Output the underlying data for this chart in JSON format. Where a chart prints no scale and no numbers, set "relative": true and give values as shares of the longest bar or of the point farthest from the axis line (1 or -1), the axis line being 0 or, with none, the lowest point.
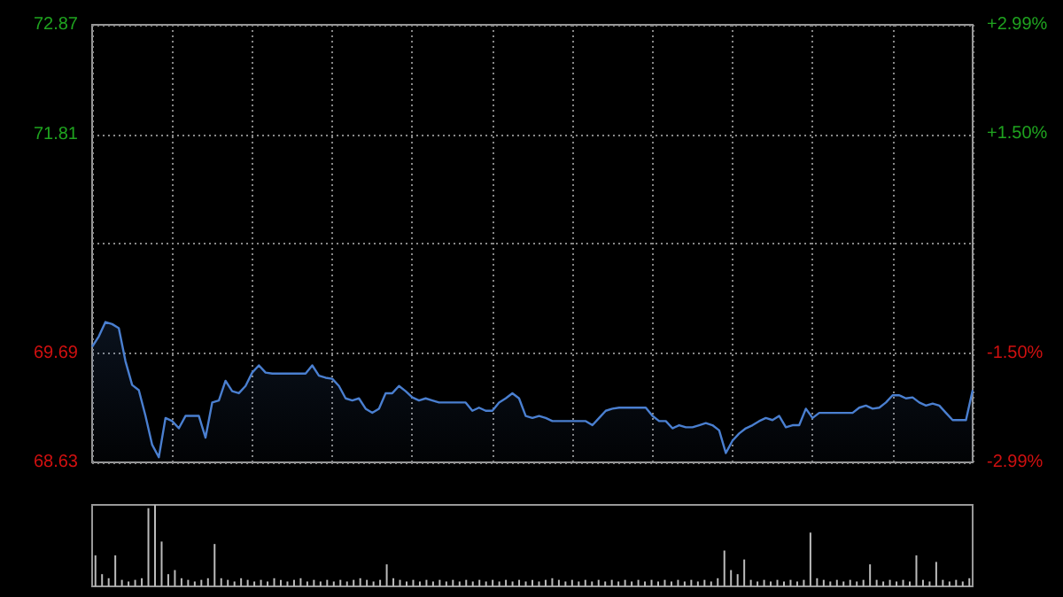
{
  "chart_data": [
    {
      "type": "area",
      "categories": [
        null,
        null,
        null,
        null,
        null,
        null,
        null,
        null,
        null,
        null,
        null,
        null,
        null,
        null,
        null,
        null,
        null,
        null,
        null,
        null,
        null,
        null,
        null,
        null,
        null,
        null,
        null,
        null,
        null,
        null,
        null,
        null,
        null,
        null,
        null,
        null,
        null,
        null,
        null,
        null,
        null,
        null,
        null,
        null,
        null,
        null,
        null,
        null,
        null,
        null,
        null,
        null,
        null,
        null,
        null,
        null,
        null,
        null,
        null,
        null,
        null,
        null,
        null,
        null,
        null,
        null,
        null,
        null,
        null,
        null,
        null,
        null,
        null,
        null,
        null,
        null,
        null,
        null,
        null,
        null,
        null,
        null,
        null,
        null,
        null,
        null,
        null,
        null,
        null,
        null,
        null,
        null,
        null,
        null,
        null,
        null,
        null,
        null,
        null,
        null,
        null,
        null,
        null,
        null,
        null,
        null,
        null,
        null,
        null,
        null,
        null,
        null,
        null,
        null,
        null,
        null,
        null,
        null,
        null,
        null,
        null,
        null,
        null,
        null,
        null,
        null,
        null,
        null,
        null,
        null,
        null,
        null,
        null
      ],
      "series": [
        {
          "color": "#4a7fd0",
          "values": [
            69.75,
            69.85,
            69.99,
            69.97,
            69.93,
            69.61,
            69.38,
            69.33,
            69.08,
            68.8,
            68.68,
            69.06,
            69.03,
            68.96,
            69.08,
            69.08,
            69.08,
            68.87,
            69.21,
            69.23,
            69.42,
            69.32,
            69.3,
            69.37,
            69.5,
            69.57,
            69.5,
            69.49,
            69.49,
            69.49,
            69.49,
            69.49,
            69.49,
            69.57,
            69.47,
            69.45,
            69.44,
            69.37,
            69.25,
            69.23,
            69.25,
            69.15,
            69.11,
            69.15,
            69.3,
            69.3,
            69.37,
            69.32,
            69.26,
            69.23,
            69.25,
            69.23,
            69.21,
            69.21,
            69.21,
            69.21,
            69.21,
            69.13,
            69.16,
            69.13,
            69.13,
            69.21,
            69.25,
            69.3,
            69.25,
            69.08,
            69.06,
            69.08,
            69.06,
            69.03,
            69.03,
            69.03,
            69.03,
            69.03,
            69.03,
            68.99,
            69.06,
            69.13,
            69.15,
            69.16,
            69.16,
            69.16,
            69.16,
            69.16,
            69.08,
            69.03,
            69.03,
            68.96,
            68.99,
            68.97,
            68.97,
            68.99,
            69.01,
            68.99,
            68.94,
            68.72,
            68.84,
            68.91,
            68.96,
            68.99,
            69.03,
            69.06,
            69.04,
            69.08,
            68.97,
            68.99,
            68.99,
            69.15,
            69.06,
            69.11,
            69.11,
            69.11,
            69.11,
            69.11,
            69.11,
            69.16,
            69.18,
            69.15,
            69.16,
            69.21,
            69.28,
            69.28,
            69.25,
            69.26,
            69.21,
            69.18,
            69.2,
            69.18,
            69.11,
            69.04,
            69.04,
            69.04,
            69.33
          ]
        }
      ],
      "ylim": [
        68.63,
        72.87
      ],
      "yticks": [
        68.63,
        69.69,
        {
          "value": 70.75,
          "label": null
        },
        71.81,
        72.87
      ],
      "y2lim": [
        -2.99,
        2.99
      ],
      "y2ticks": [
        {
          "value": -2.99,
          "label": "-2.99%"
        },
        {
          "value": -1.5,
          "label": "-1.50%"
        },
        {
          "value": 0,
          "label": null
        },
        {
          "value": 1.5,
          "label": "+1.50%"
        },
        {
          "value": 2.99,
          "label": "+2.99%"
        }
      ],
      "grid": true,
      "tick_labels": "y",
      "line_style": "solid"
    },
    {
      "type": "bar",
      "relative": true,
      "grid": false,
      "tick_labels": false,
      "categories": [
        null,
        null,
        null,
        null,
        null,
        null,
        null,
        null,
        null,
        null,
        null,
        null,
        null,
        null,
        null,
        null,
        null,
        null,
        null,
        null,
        null,
        null,
        null,
        null,
        null,
        null,
        null,
        null,
        null,
        null,
        null,
        null,
        null,
        null,
        null,
        null,
        null,
        null,
        null,
        null,
        null,
        null,
        null,
        null,
        null,
        null,
        null,
        null,
        null,
        null,
        null,
        null,
        null,
        null,
        null,
        null,
        null,
        null,
        null,
        null,
        null,
        null,
        null,
        null,
        null,
        null,
        null,
        null,
        null,
        null,
        null,
        null,
        null,
        null,
        null,
        null,
        null,
        null,
        null,
        null,
        null,
        null,
        null,
        null,
        null,
        null,
        null,
        null,
        null,
        null,
        null,
        null,
        null,
        null,
        null,
        null,
        null,
        null,
        null,
        null,
        null,
        null,
        null,
        null,
        null,
        null,
        null,
        null,
        null,
        null,
        null,
        null,
        null,
        null,
        null,
        null,
        null,
        null,
        null,
        null,
        null,
        null,
        null,
        null,
        null,
        null,
        null,
        null,
        null,
        null,
        null,
        null,
        null
      ],
      "series": [
        {
          "color": "#bbbbbb",
          "values": [
            0.38,
            0.15,
            0.1,
            0.38,
            0.08,
            0.06,
            0.08,
            0.1,
            0.96,
            1.0,
            0.55,
            0.15,
            0.2,
            0.1,
            0.08,
            0.06,
            0.08,
            0.1,
            0.52,
            0.1,
            0.08,
            0.06,
            0.1,
            0.08,
            0.06,
            0.08,
            0.06,
            0.1,
            0.08,
            0.06,
            0.08,
            0.1,
            0.06,
            0.08,
            0.06,
            0.08,
            0.06,
            0.08,
            0.06,
            0.08,
            0.1,
            0.08,
            0.06,
            0.08,
            0.27,
            0.1,
            0.08,
            0.06,
            0.08,
            0.06,
            0.08,
            0.06,
            0.08,
            0.06,
            0.08,
            0.06,
            0.08,
            0.06,
            0.08,
            0.06,
            0.08,
            0.06,
            0.08,
            0.06,
            0.08,
            0.06,
            0.08,
            0.06,
            0.08,
            0.1,
            0.08,
            0.06,
            0.08,
            0.06,
            0.08,
            0.06,
            0.08,
            0.06,
            0.08,
            0.06,
            0.08,
            0.06,
            0.08,
            0.06,
            0.08,
            0.06,
            0.08,
            0.06,
            0.08,
            0.06,
            0.08,
            0.06,
            0.08,
            0.06,
            0.1,
            0.44,
            0.2,
            0.15,
            0.33,
            0.08,
            0.06,
            0.08,
            0.06,
            0.08,
            0.06,
            0.08,
            0.06,
            0.08,
            0.66,
            0.1,
            0.08,
            0.06,
            0.08,
            0.06,
            0.08,
            0.06,
            0.08,
            0.27,
            0.08,
            0.06,
            0.08,
            0.06,
            0.08,
            0.06,
            0.38,
            0.08,
            0.06,
            0.3,
            0.08,
            0.06,
            0.08,
            0.06,
            0.1
          ]
        }
      ]
    }
  ]
}
